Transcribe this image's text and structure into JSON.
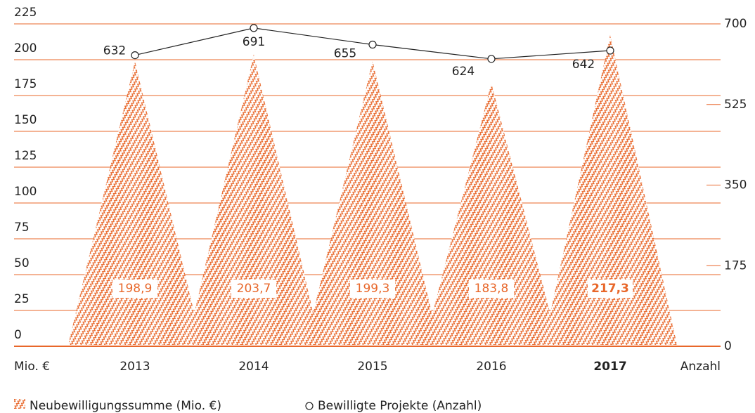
{
  "chart_data": {
    "type": "bar",
    "categories": [
      "2013",
      "2014",
      "2015",
      "2016",
      "2017"
    ],
    "series": [
      {
        "name": "Neubewilligungssumme (Mio. €)",
        "color": "#e8672a",
        "values": [
          198.9,
          203.7,
          199.3,
          183.8,
          217.3
        ],
        "value_labels": [
          "198,9",
          "203,7",
          "199,3",
          "183,8",
          "217,3"
        ]
      },
      {
        "name": "Bewilligte Projekte (Anzahl)",
        "color": "#222222",
        "values": [
          632,
          691,
          655,
          624,
          642
        ],
        "axis": "y2"
      }
    ],
    "y_label": "Mio. €",
    "y2_label": "Anzahl",
    "ylim": [
      0,
      225
    ],
    "yticks": [
      0,
      25,
      50,
      75,
      100,
      125,
      150,
      175,
      200,
      225
    ],
    "y2lim": [
      0,
      700
    ],
    "y2ticks": [
      0,
      175,
      350,
      525,
      700
    ],
    "grid": true
  }
}
